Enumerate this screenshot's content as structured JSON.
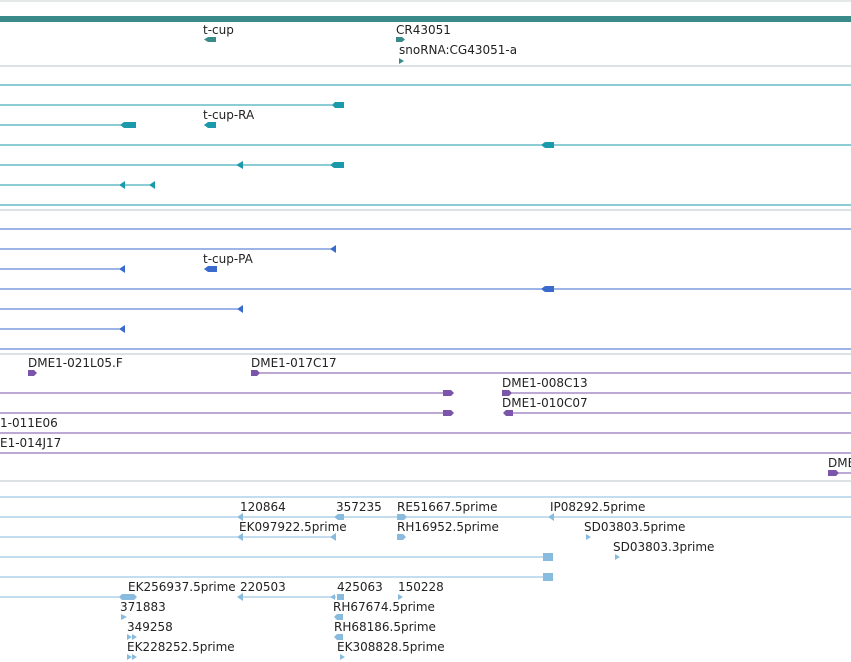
{
  "colors": {
    "gene": "#3a8a8a",
    "mrna": "#1a9aaa",
    "cds": "#3a6acc",
    "bac": "#7a55aa",
    "est": "#88bbdd",
    "separator": "#b8c4c8"
  },
  "tracks": {
    "gene": {
      "labels": [
        "t-cup",
        "CR43051",
        "snoRNA:CG43051-a"
      ]
    },
    "mrna": {
      "labels": [
        "t-cup-RA"
      ]
    },
    "cds": {
      "labels": [
        "t-cup-PA"
      ]
    },
    "bac": {
      "labels": [
        "DME1-021L05.F",
        "DME1-017C17",
        "DME1-008C13",
        "DME1-010C07",
        "1-011E06",
        "E1-014J17",
        "DME"
      ]
    },
    "est": {
      "labels": [
        "120864",
        "357235",
        "RE51667.5prime",
        "IP08292.5prime",
        "EK097922.5prime",
        "RH16952.5prime",
        "SD03803.5prime",
        "SD03803.3prime",
        "EK256937.5prime",
        "220503",
        "425063",
        "150228",
        "371883",
        "RH67674.5prime",
        "349258",
        "RH68186.5prime",
        "EK228252.5prime",
        "EK308828.5prime"
      ]
    }
  }
}
